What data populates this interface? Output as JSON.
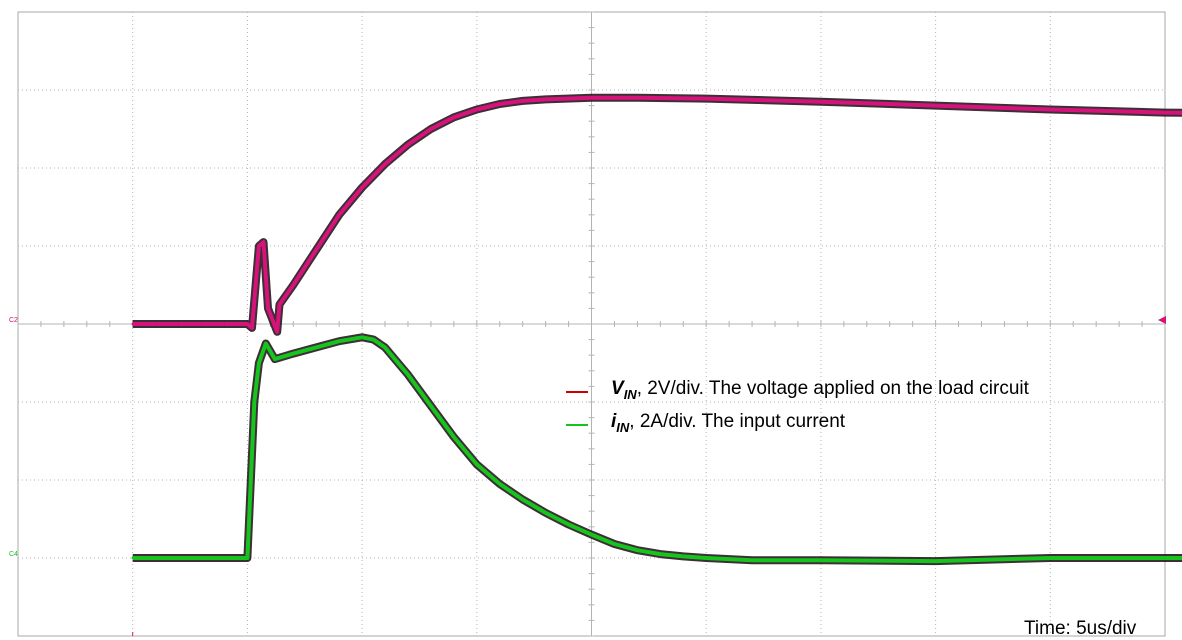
{
  "chart_data": {
    "type": "line",
    "grid": true,
    "x_unit": "us",
    "x_range": [
      0,
      50
    ],
    "y_range_divisions": [
      -4,
      4
    ],
    "series": [
      {
        "name": "V_IN, 2V/div. The voltage applied on the load circuit",
        "symbol": "V",
        "symbol_sub": "IN",
        "desc": ", 2V/div. The voltage applied on the load circuit",
        "color": "#d6137a",
        "legend_color": "#cc0000",
        "channel": "C2",
        "points": [
          [
            0,
            0.0
          ],
          [
            5.0,
            0.0
          ],
          [
            5.2,
            -0.05
          ],
          [
            5.5,
            1.0
          ],
          [
            5.7,
            1.05
          ],
          [
            5.9,
            0.2
          ],
          [
            6.3,
            -0.1
          ],
          [
            6.4,
            0.25
          ],
          [
            7,
            0.5
          ],
          [
            8,
            0.95
          ],
          [
            9,
            1.4
          ],
          [
            10,
            1.75
          ],
          [
            11,
            2.05
          ],
          [
            12,
            2.3
          ],
          [
            13,
            2.5
          ],
          [
            14,
            2.65
          ],
          [
            15,
            2.75
          ],
          [
            16,
            2.82
          ],
          [
            17,
            2.86
          ],
          [
            18,
            2.88
          ],
          [
            20,
            2.9
          ],
          [
            22,
            2.9
          ],
          [
            25,
            2.89
          ],
          [
            30,
            2.85
          ],
          [
            35,
            2.8
          ],
          [
            40,
            2.75
          ],
          [
            45,
            2.71
          ],
          [
            49,
            2.7
          ]
        ]
      },
      {
        "name": "i_IN, 2A/div. The input current",
        "symbol": "i",
        "symbol_sub": "IN",
        "desc": ", 2A/div. The input current",
        "color": "#17c31d",
        "legend_color": "#17c31d",
        "channel": "C4",
        "points": [
          [
            0,
            0.0
          ],
          [
            5.0,
            0.0
          ],
          [
            5.3,
            2.0
          ],
          [
            5.5,
            2.5
          ],
          [
            5.8,
            2.75
          ],
          [
            6.2,
            2.55
          ],
          [
            7,
            2.62
          ],
          [
            8,
            2.7
          ],
          [
            9,
            2.78
          ],
          [
            10,
            2.83
          ],
          [
            10.5,
            2.8
          ],
          [
            11,
            2.7
          ],
          [
            12,
            2.35
          ],
          [
            13,
            1.95
          ],
          [
            14,
            1.55
          ],
          [
            15,
            1.2
          ],
          [
            16,
            0.95
          ],
          [
            17,
            0.75
          ],
          [
            18,
            0.58
          ],
          [
            19,
            0.43
          ],
          [
            20,
            0.3
          ],
          [
            21,
            0.18
          ],
          [
            22,
            0.1
          ],
          [
            23,
            0.05
          ],
          [
            24,
            0.02
          ],
          [
            25,
            0.0
          ],
          [
            27,
            -0.03
          ],
          [
            30,
            -0.03
          ],
          [
            35,
            -0.04
          ],
          [
            40,
            0.0
          ],
          [
            45,
            0.0
          ],
          [
            49,
            0.0
          ]
        ]
      }
    ],
    "annotation": "Time: 5us/div"
  }
}
